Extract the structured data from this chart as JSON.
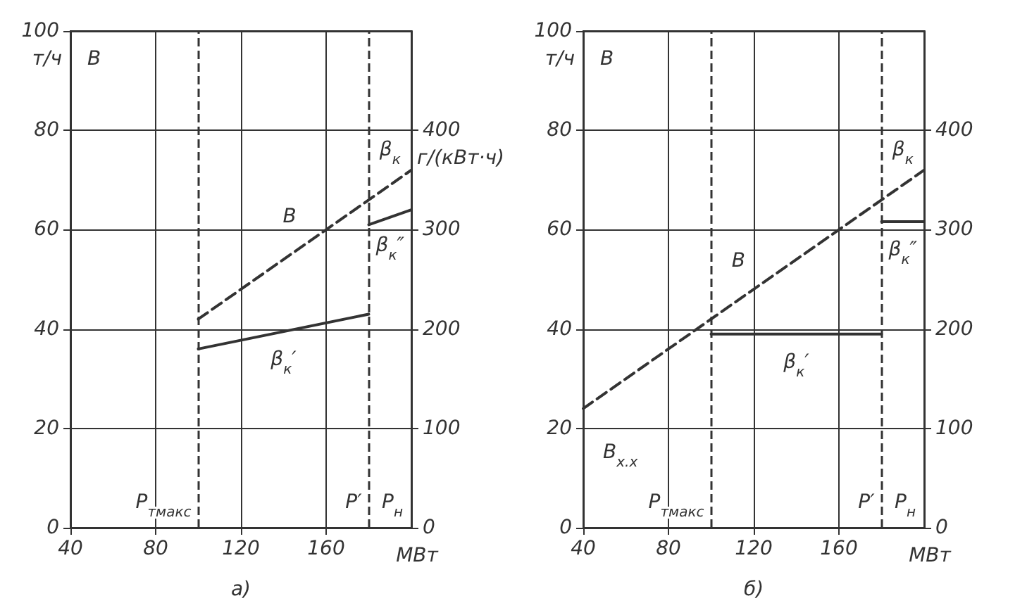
{
  "chart_data": [
    {
      "type": "line",
      "title": "а)",
      "xlabel": "МВт",
      "ylabel": "т/ч",
      "y2label": "г/(кВт·ч)",
      "xlim": [
        40,
        200
      ],
      "xticks": [
        40,
        80,
        120,
        160
      ],
      "ylim": [
        0,
        100
      ],
      "yticks": [
        0,
        20,
        40,
        60,
        80,
        100
      ],
      "y2lim": [
        0,
        500
      ],
      "y2ticks": [
        0,
        100,
        200,
        300,
        400
      ],
      "grid": true,
      "marker": "none",
      "series": [
        {
          "name": "B",
          "color": "#333333",
          "line_style": "dashed",
          "x": [
            100,
            200
          ],
          "values": [
            42,
            72
          ]
        },
        {
          "name": "β$_{к}$′",
          "color": "#333333",
          "line_style": "solid",
          "axis": "y2",
          "x": [
            100,
            180
          ],
          "values": [
            180,
            215
          ]
        },
        {
          "name": "β$_{к}$″",
          "color": "#333333",
          "line_style": "solid",
          "axis": "y2",
          "x": [
            180,
            200
          ],
          "values": [
            305,
            320
          ]
        }
      ],
      "ref_lines": [
        {
          "axis": "x",
          "value": 100,
          "label": "P$_{тмакс}$",
          "line_style": "dashed",
          "color": "#333333"
        },
        {
          "axis": "x",
          "value": 180,
          "label": "P′",
          "line_style": "dashed",
          "color": "#333333"
        }
      ],
      "annotations": [
        "B",
        "P$_{н}$",
        "β$_{к}$"
      ]
    },
    {
      "type": "line",
      "title": "б)",
      "xlabel": "МВт",
      "ylabel": "т/ч",
      "xlim": [
        40,
        200
      ],
      "xticks": [
        40,
        80,
        120,
        160
      ],
      "ylim": [
        0,
        100
      ],
      "yticks": [
        0,
        20,
        40,
        60,
        80,
        100
      ],
      "y2lim": [
        0,
        500
      ],
      "y2ticks": [
        0,
        100,
        200,
        300,
        400
      ],
      "grid": true,
      "marker": "none",
      "series": [
        {
          "name": "B",
          "color": "#333333",
          "line_style": "dashed",
          "x": [
            40,
            200
          ],
          "values": [
            24,
            72
          ]
        },
        {
          "name": "β$_{к}$′",
          "color": "#333333",
          "line_style": "solid",
          "axis": "y2",
          "x": [
            100,
            180
          ],
          "values": [
            195,
            195
          ]
        },
        {
          "name": "β$_{к}$″",
          "color": "#333333",
          "line_style": "solid",
          "axis": "y2",
          "x": [
            180,
            200
          ],
          "values": [
            308,
            308
          ]
        }
      ],
      "ref_lines": [
        {
          "axis": "x",
          "value": 100,
          "label": "P$_{тмакс}$",
          "line_style": "dashed",
          "color": "#333333"
        },
        {
          "axis": "x",
          "value": 180,
          "label": "P′",
          "line_style": "dashed",
          "color": "#333333"
        }
      ],
      "annotations": [
        "B",
        "P$_{н}$",
        "β$_{к}$",
        "B$_{х.х}$"
      ]
    }
  ]
}
